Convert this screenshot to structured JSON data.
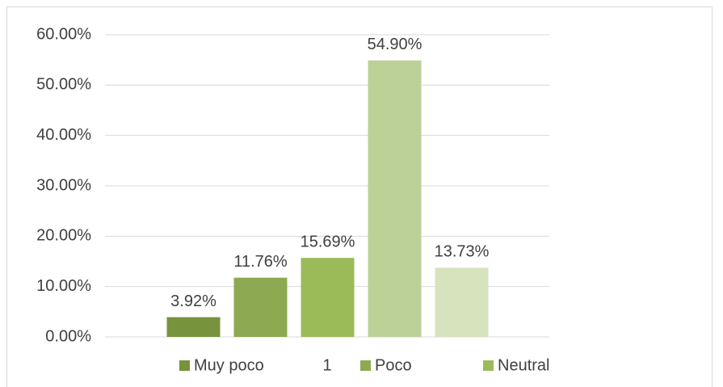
{
  "chart_data": {
    "type": "bar",
    "categories": [
      "1"
    ],
    "series": [
      {
        "name": "Muy poco",
        "color": "#77933C",
        "values": [
          3.92
        ],
        "value_labels": [
          "3.92%"
        ]
      },
      {
        "name": "Poco",
        "color": "#8DAA53",
        "values": [
          11.76
        ],
        "value_labels": [
          "11.76%"
        ]
      },
      {
        "name": "Neutral",
        "color": "#9BBB59",
        "values": [
          15.69
        ],
        "value_labels": [
          "15.69%"
        ]
      },
      {
        "color": "#BBD198",
        "values": [
          54.9
        ],
        "value_labels": [
          "54.90%"
        ]
      },
      {
        "color": "#D6E3BD",
        "values": [
          13.73
        ],
        "value_labels": [
          "13.73%"
        ]
      }
    ],
    "ylim": [
      0,
      60
    ],
    "yticks": [
      {
        "value": 0,
        "label": "0.00%"
      },
      {
        "value": 10,
        "label": "10.00%"
      },
      {
        "value": 20,
        "label": "20.00%"
      },
      {
        "value": 30,
        "label": "30.00%"
      },
      {
        "value": 40,
        "label": "40.00%"
      },
      {
        "value": 50,
        "label": "50.00%"
      },
      {
        "value": 60,
        "label": "60.00%"
      }
    ],
    "grid": true,
    "legend": "bottom"
  }
}
